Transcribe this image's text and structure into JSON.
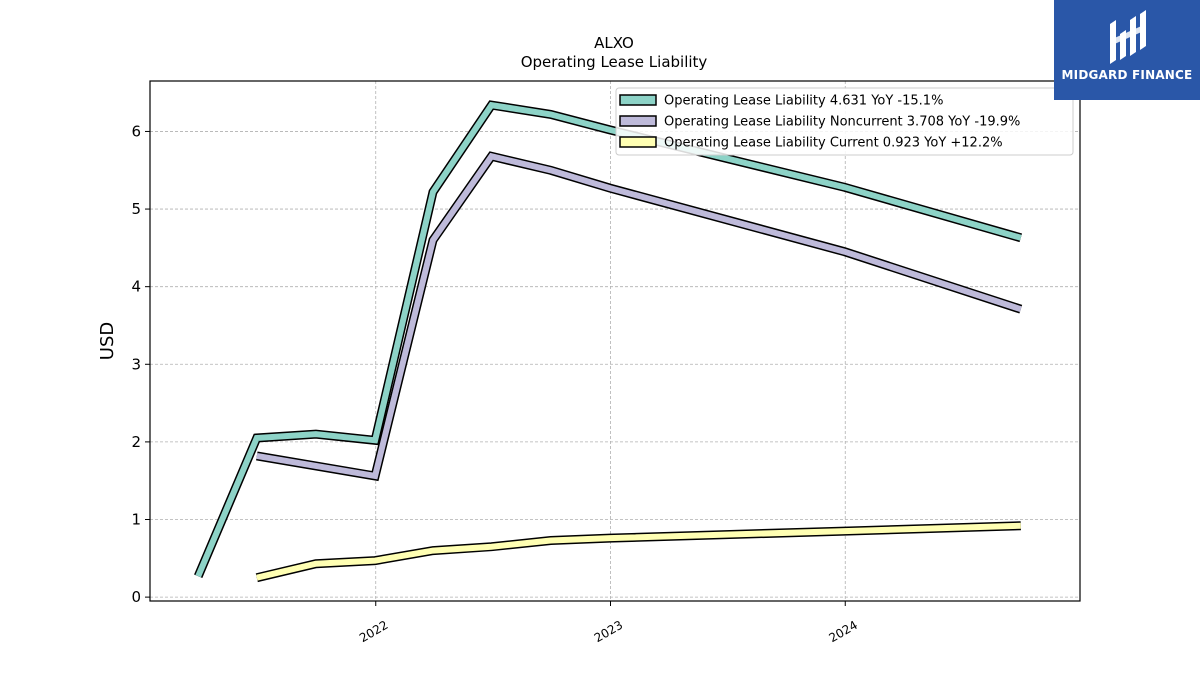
{
  "brand": {
    "name": "MIDGARD FINANCE",
    "color": "#2a57a8"
  },
  "chart_data": {
    "type": "line",
    "title": "ALXO",
    "subtitle": "Operating Lease Liability",
    "ylabel": "USD",
    "xlabel": "",
    "ylim": [
      -0.05,
      6.65
    ],
    "xlim": [
      "2021-01-15",
      "2024-12-31"
    ],
    "yticks": [
      0,
      1,
      2,
      3,
      4,
      5,
      6
    ],
    "xticks": [
      "2022-01-01",
      "2023-01-01",
      "2024-01-01"
    ],
    "xtick_labels": [
      "2022",
      "2023",
      "2024"
    ],
    "grid": true,
    "legend_position": "top-right",
    "series": [
      {
        "name": "Operating Lease Liability",
        "legend_label": "Operating Lease Liability  4.631 YoY -15.1%",
        "color": "#8dd3c7",
        "points": [
          [
            "2021-03-31",
            0.27
          ],
          [
            "2021-06-30",
            2.05
          ],
          [
            "2021-09-30",
            2.1
          ],
          [
            "2021-12-31",
            2.02
          ],
          [
            "2022-03-31",
            5.22
          ],
          [
            "2022-06-30",
            6.34
          ],
          [
            "2022-09-30",
            6.22
          ],
          [
            "2022-12-31",
            6.02
          ],
          [
            "2023-12-31",
            5.28
          ],
          [
            "2024-09-30",
            4.63
          ]
        ]
      },
      {
        "name": "Operating Lease Liability Noncurrent",
        "legend_label": "Operating Lease Liability Noncurrent  3.708 YoY -19.9%",
        "color": "#bebada",
        "points": [
          [
            "2021-06-30",
            1.82
          ],
          [
            "2021-12-31",
            1.56
          ],
          [
            "2022-03-31",
            4.6
          ],
          [
            "2022-06-30",
            5.68
          ],
          [
            "2022-09-30",
            5.5
          ],
          [
            "2022-12-31",
            5.27
          ],
          [
            "2023-12-31",
            4.45
          ],
          [
            "2024-09-30",
            3.71
          ]
        ]
      },
      {
        "name": "Operating Lease Liability Current",
        "legend_label": "Operating Lease Liability Current  0.923 YoY +12.2%",
        "color": "#ffffb3",
        "points": [
          [
            "2021-06-30",
            0.25
          ],
          [
            "2021-09-30",
            0.43
          ],
          [
            "2021-12-31",
            0.47
          ],
          [
            "2022-03-31",
            0.6
          ],
          [
            "2022-06-30",
            0.65
          ],
          [
            "2022-09-30",
            0.73
          ],
          [
            "2022-12-31",
            0.76
          ],
          [
            "2023-12-31",
            0.85
          ],
          [
            "2024-09-30",
            0.92
          ]
        ]
      }
    ]
  }
}
